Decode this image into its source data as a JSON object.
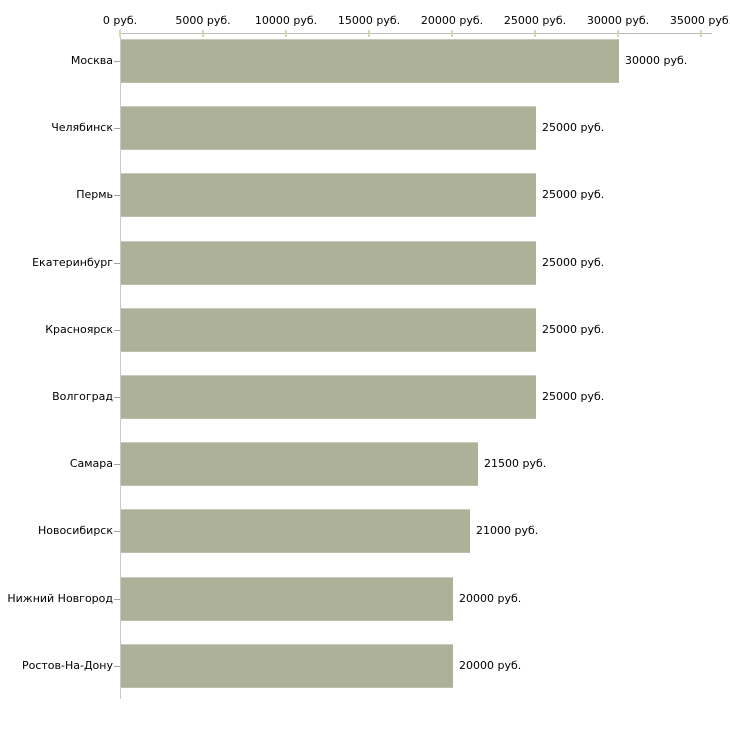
{
  "chart_data": {
    "type": "bar",
    "orientation": "horizontal",
    "title": "",
    "xlabel": "",
    "ylabel": "",
    "unit": "руб.",
    "categories": [
      "Москва",
      "Челябинск",
      "Пермь",
      "Екатеринбург",
      "Красноярск",
      "Волгоград",
      "Самара",
      "Новосибирск",
      "Нижний Новгород",
      "Ростов-На-Дону"
    ],
    "values": [
      30000,
      25000,
      25000,
      25000,
      25000,
      25000,
      21500,
      21000,
      20000,
      20000
    ],
    "value_labels": [
      "30000 руб.",
      "25000 руб.",
      "25000 руб.",
      "25000 руб.",
      "25000 руб.",
      "25000 руб.",
      "21500 руб.",
      "21000 руб.",
      "20000 руб.",
      "20000 руб."
    ],
    "x_axis": {
      "position": "top",
      "tick_values": [
        0,
        5000,
        10000,
        15000,
        20000,
        25000,
        30000,
        35000
      ],
      "tick_labels": [
        "0 руб.",
        "5000 руб.",
        "10000 руб.",
        "15000 руб.",
        "20000 руб.",
        "25000 руб.",
        "30000 руб.",
        "35000 руб."
      ],
      "min": 0,
      "max": 35000
    },
    "legend": null,
    "grid": false,
    "colors": {
      "bar": "#acb198",
      "axis_line": "#bcbcbc",
      "axis_tick": "#d6d7ac",
      "category_tick": "#a3a39b",
      "text": "#000000",
      "background": "#ffffff"
    }
  }
}
